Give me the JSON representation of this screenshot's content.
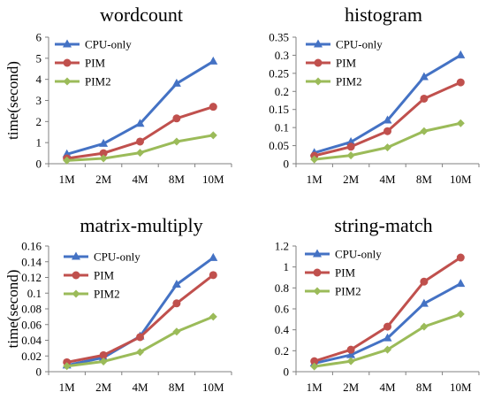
{
  "chart_data": [
    {
      "type": "line",
      "title": "wordcount",
      "ylabel": "time(second)",
      "xlabel": "",
      "categories": [
        "1M",
        "2M",
        "4M",
        "8M",
        "10M"
      ],
      "ylim": [
        0,
        6
      ],
      "yticks": [
        "0",
        "1",
        "2",
        "3",
        "4",
        "5",
        "6"
      ],
      "ytick_values": [
        0,
        1,
        2,
        3,
        4,
        5,
        6
      ],
      "legend": "top-left",
      "series": [
        {
          "name": "CPU-only",
          "color": "#4472C4",
          "marker": "triangle",
          "values": [
            0.45,
            0.95,
            1.9,
            3.8,
            4.85
          ]
        },
        {
          "name": "PIM",
          "color": "#C0504D",
          "marker": "circle",
          "values": [
            0.25,
            0.5,
            1.05,
            2.15,
            2.7
          ]
        },
        {
          "name": "PIM2",
          "color": "#9BBB59",
          "marker": "diamond",
          "values": [
            0.15,
            0.25,
            0.52,
            1.05,
            1.35
          ]
        }
      ]
    },
    {
      "type": "line",
      "title": "histogram",
      "ylabel": "",
      "xlabel": "",
      "categories": [
        "1M",
        "2M",
        "4M",
        "8M",
        "10M"
      ],
      "ylim": [
        0,
        0.35
      ],
      "yticks": [
        "0",
        "0.05",
        "0.1",
        "0.15",
        "0.2",
        "0.25",
        "0.3",
        "0.35"
      ],
      "ytick_values": [
        0,
        0.05,
        0.1,
        0.15,
        0.2,
        0.25,
        0.3,
        0.35
      ],
      "legend": "top-left",
      "series": [
        {
          "name": "CPU-only",
          "color": "#4472C4",
          "marker": "triangle",
          "values": [
            0.03,
            0.06,
            0.12,
            0.24,
            0.3
          ]
        },
        {
          "name": "PIM",
          "color": "#C0504D",
          "marker": "circle",
          "values": [
            0.022,
            0.047,
            0.09,
            0.18,
            0.225
          ]
        },
        {
          "name": "PIM2",
          "color": "#9BBB59",
          "marker": "diamond",
          "values": [
            0.012,
            0.023,
            0.045,
            0.09,
            0.112
          ]
        }
      ]
    },
    {
      "type": "line",
      "title": "matrix-multiply",
      "ylabel": "time(second)",
      "xlabel": "",
      "categories": [
        "1M",
        "2M",
        "4M",
        "8M",
        "10M"
      ],
      "ylim": [
        0,
        0.16
      ],
      "yticks": [
        "0",
        "0.02",
        "0.04",
        "0.06",
        "0.08",
        "0.1",
        "0.12",
        "0.14",
        "0.16"
      ],
      "ytick_values": [
        0,
        0.02,
        0.04,
        0.06,
        0.08,
        0.1,
        0.12,
        0.14,
        0.16
      ],
      "legend": "top-left",
      "series": [
        {
          "name": "CPU-only",
          "color": "#4472C4",
          "marker": "triangle",
          "values": [
            0.008,
            0.018,
            0.045,
            0.111,
            0.145
          ]
        },
        {
          "name": "PIM",
          "color": "#C0504D",
          "marker": "circle",
          "values": [
            0.012,
            0.021,
            0.044,
            0.087,
            0.123
          ]
        },
        {
          "name": "PIM2",
          "color": "#9BBB59",
          "marker": "diamond",
          "values": [
            0.007,
            0.013,
            0.025,
            0.051,
            0.07
          ]
        }
      ]
    },
    {
      "type": "line",
      "title": "string-match",
      "ylabel": "",
      "xlabel": "",
      "categories": [
        "1M",
        "2M",
        "4M",
        "8M",
        "10M"
      ],
      "ylim": [
        0,
        1.2
      ],
      "yticks": [
        "0",
        "0.2",
        "0.4",
        "0.6",
        "0.8",
        "1",
        "1.2"
      ],
      "ytick_values": [
        0,
        0.2,
        0.4,
        0.6,
        0.8,
        1.0,
        1.2
      ],
      "legend": "top-left",
      "series": [
        {
          "name": "CPU-only",
          "color": "#4472C4",
          "marker": "triangle",
          "values": [
            0.08,
            0.16,
            0.32,
            0.65,
            0.84
          ]
        },
        {
          "name": "PIM",
          "color": "#C0504D",
          "marker": "circle",
          "values": [
            0.1,
            0.21,
            0.43,
            0.86,
            1.09
          ]
        },
        {
          "name": "PIM2",
          "color": "#9BBB59",
          "marker": "diamond",
          "values": [
            0.05,
            0.1,
            0.21,
            0.43,
            0.55
          ]
        }
      ]
    }
  ]
}
